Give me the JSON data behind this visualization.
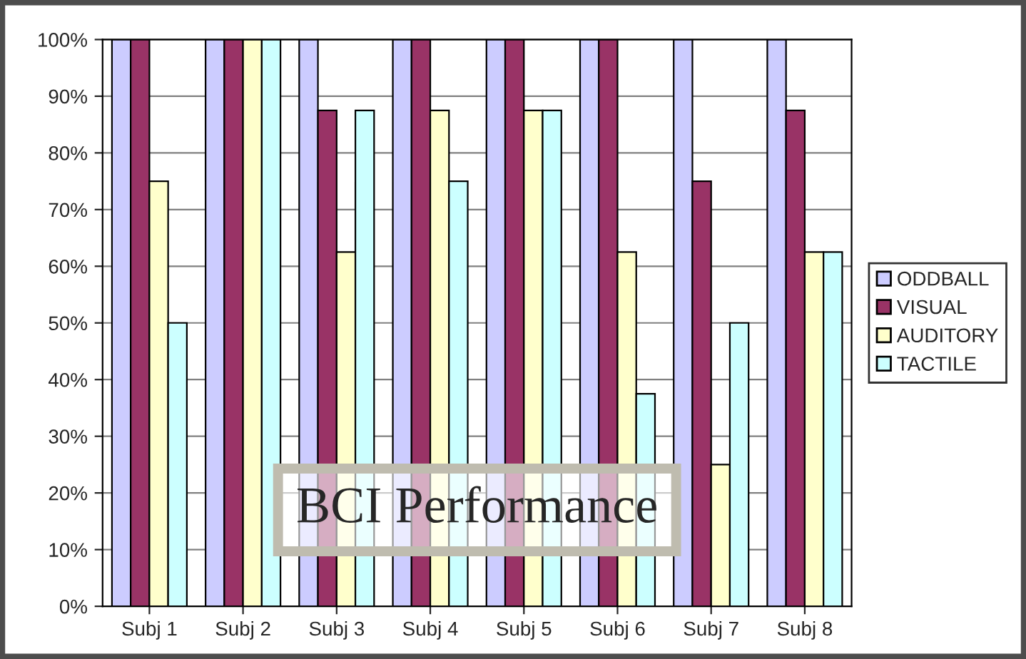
{
  "chart_data": {
    "type": "bar",
    "title": "BCI Performance",
    "categories": [
      "Subj 1",
      "Subj 2",
      "Subj 3",
      "Subj 4",
      "Subj 5",
      "Subj 6",
      "Subj 7",
      "Subj 8"
    ],
    "series": [
      {
        "name": "ODDBALL",
        "color": "#ccccff",
        "values": [
          100,
          100,
          100,
          100,
          100,
          100,
          100,
          100
        ]
      },
      {
        "name": "VISUAL",
        "color": "#993366",
        "values": [
          100,
          100,
          87.5,
          100,
          100,
          100,
          75,
          87.5
        ]
      },
      {
        "name": "AUDITORY",
        "color": "#ffffcc",
        "values": [
          75,
          100,
          62.5,
          87.5,
          87.5,
          62.5,
          25,
          62.5
        ]
      },
      {
        "name": "TACTILE",
        "color": "#ccffff",
        "values": [
          50,
          100,
          87.5,
          75,
          87.5,
          37.5,
          50,
          62.5
        ]
      }
    ],
    "ylim": [
      0,
      100
    ],
    "yticks": [
      {
        "value": 0,
        "label": "0%"
      },
      {
        "value": 10,
        "label": "10%"
      },
      {
        "value": 20,
        "label": "20%"
      },
      {
        "value": 30,
        "label": "30%"
      },
      {
        "value": 40,
        "label": "40%"
      },
      {
        "value": 50,
        "label": "50%"
      },
      {
        "value": 60,
        "label": "60%"
      },
      {
        "value": 70,
        "label": "70%"
      },
      {
        "value": 80,
        "label": "80%"
      },
      {
        "value": 90,
        "label": "90%"
      },
      {
        "value": 100,
        "label": "100%"
      }
    ],
    "grid": "y",
    "legend": "right"
  }
}
